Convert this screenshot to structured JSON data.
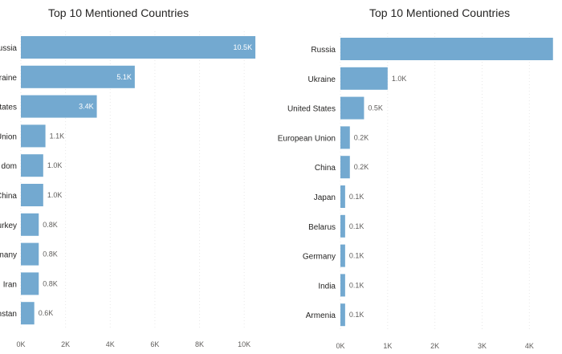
{
  "colors": {
    "bar": "#73A9D0",
    "grid": "#e8e8e8",
    "text": "#252423",
    "muted": "#605e5c"
  },
  "chart_data": [
    {
      "type": "bar",
      "orientation": "horizontal",
      "title": "Top 10 Mentioned Countries",
      "categories": [
        "Russia",
        "Ukraine",
        "United States",
        "European Union",
        "United Kingdom",
        "China",
        "Turkey",
        "Germany",
        "Iran",
        "Afghanistan"
      ],
      "category_labels_visible": [
        "ussia",
        "kraine",
        "tates",
        "Union",
        "dom",
        "China",
        "urkey",
        "many",
        "Iran",
        "nstan"
      ],
      "values": [
        10500,
        5100,
        3400,
        1100,
        1000,
        1000,
        800,
        800,
        800,
        600
      ],
      "data_labels": [
        "10.5K",
        "5.1K",
        "3.4K",
        "1.1K",
        "1.0K",
        "1.0K",
        "0.8K",
        "0.8K",
        "0.8K",
        "0.6K"
      ],
      "x_ticks": [
        0,
        2000,
        4000,
        6000,
        8000,
        10000
      ],
      "x_tick_labels": [
        "0K",
        "2K",
        "4K",
        "6K",
        "8K",
        "10K"
      ],
      "xlim": [
        0,
        11000
      ],
      "grid": true
    },
    {
      "type": "bar",
      "orientation": "horizontal",
      "title": "Top 10 Mentioned Countries",
      "categories": [
        "Russia",
        "Ukraine",
        "United States",
        "European Union",
        "China",
        "Japan",
        "Belarus",
        "Germany",
        "India",
        "Armenia"
      ],
      "values": [
        4500,
        1000,
        500,
        200,
        200,
        100,
        100,
        100,
        100,
        100
      ],
      "data_labels": [
        "",
        "1.0K",
        "0.5K",
        "0.2K",
        "0.2K",
        "0.1K",
        "0.1K",
        "0.1K",
        "0.1K",
        "0.1K"
      ],
      "x_ticks": [
        0,
        1000,
        2000,
        3000,
        4000
      ],
      "x_tick_labels": [
        "0K",
        "1K",
        "2K",
        "3K",
        "4K"
      ],
      "xlim": [
        0,
        4300
      ],
      "grid": true
    }
  ]
}
